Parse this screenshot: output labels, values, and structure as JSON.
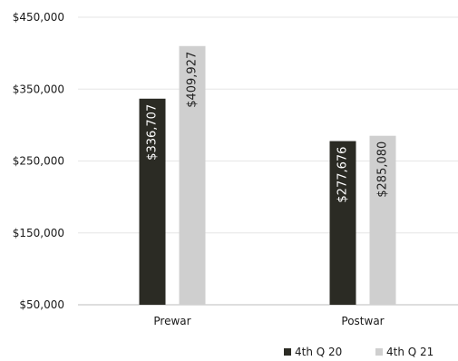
{
  "chart_data": {
    "type": "bar",
    "title": "",
    "xlabel": "",
    "ylabel": "",
    "categories": [
      "Prewar",
      "Postwar"
    ],
    "ylim": [
      50000,
      450000
    ],
    "yticks": [
      {
        "value": 450000,
        "label": "$450,000"
      },
      {
        "value": 350000,
        "label": "$350,000"
      },
      {
        "value": 250000,
        "label": "$250,000"
      },
      {
        "value": 150000,
        "label": "$150,000"
      },
      {
        "value": 50000,
        "label": "$50,000"
      }
    ],
    "series": [
      {
        "name": "4th Q 20",
        "values": [
          336707,
          277676
        ],
        "labels": [
          "$336,707",
          "$277,676"
        ],
        "color": "#2b2b24",
        "label_color": "#ffffff"
      },
      {
        "name": "4th Q 21",
        "values": [
          409927,
          285080
        ],
        "labels": [
          "$409,927",
          "$285,080"
        ],
        "color": "#cfcfcf",
        "label_color": "#222222"
      }
    ],
    "grid": true,
    "legend": "bottom-right"
  }
}
